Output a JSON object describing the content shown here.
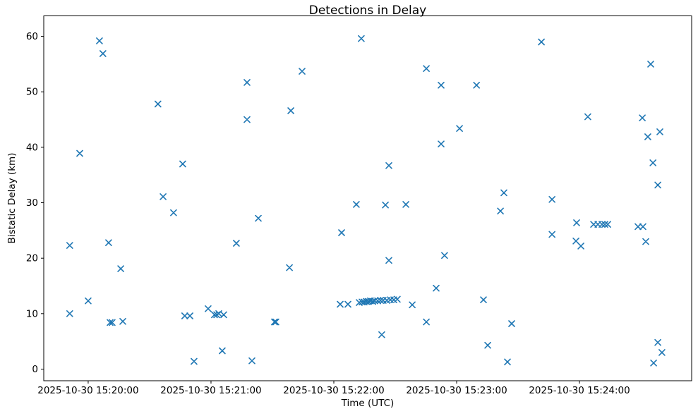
{
  "chart_data": {
    "type": "scatter",
    "title": "Detections in Delay",
    "xlabel": "Time (UTC)",
    "ylabel": "Bistatic Delay (km)",
    "marker": "x",
    "marker_color": "#1f77b4",
    "grid": false,
    "x_time_base": "2025-10-30 15:20:00",
    "x_unit_note": "point x values are seconds relative to 2025-10-30 15:20:00 UTC",
    "xlim_seconds": [
      -21.7,
      294.8
    ],
    "ylim": [
      -2.1,
      63.7
    ],
    "x_ticks": [
      {
        "seconds": 0,
        "label": "2025-10-30 15:20:00"
      },
      {
        "seconds": 60,
        "label": "2025-10-30 15:21:00"
      },
      {
        "seconds": 120,
        "label": "2025-10-30 15:22:00"
      },
      {
        "seconds": 180,
        "label": "2025-10-30 15:23:00"
      },
      {
        "seconds": 240,
        "label": "2025-10-30 15:24:00"
      }
    ],
    "y_ticks": [
      0,
      10,
      20,
      30,
      40,
      50,
      60
    ],
    "points": [
      [
        5.5,
        59.2
      ],
      [
        7.2,
        56.9
      ],
      [
        34.1,
        47.8
      ],
      [
        -4.1,
        38.9
      ],
      [
        46.2,
        37.0
      ],
      [
        36.6,
        31.1
      ],
      [
        41.7,
        28.2
      ],
      [
        -9.0,
        22.3
      ],
      [
        10.0,
        22.8
      ],
      [
        15.9,
        18.1
      ],
      [
        0.0,
        12.3
      ],
      [
        -9.0,
        10.0
      ],
      [
        10.7,
        8.4
      ],
      [
        11.7,
        8.4
      ],
      [
        16.9,
        8.6
      ],
      [
        47.2,
        9.6
      ],
      [
        49.7,
        9.6
      ],
      [
        58.6,
        10.9
      ],
      [
        51.7,
        1.4
      ],
      [
        61.7,
        9.8
      ],
      [
        62.8,
        9.8
      ],
      [
        63.8,
        10.0
      ],
      [
        66.2,
        9.8
      ],
      [
        133.4,
        59.6
      ],
      [
        104.5,
        53.7
      ],
      [
        77.6,
        51.7
      ],
      [
        99.0,
        46.6
      ],
      [
        77.6,
        45.0
      ],
      [
        131.0,
        29.7
      ],
      [
        83.1,
        27.2
      ],
      [
        123.8,
        24.6
      ],
      [
        72.4,
        22.7
      ],
      [
        98.3,
        18.3
      ],
      [
        91.0,
        8.5
      ],
      [
        91.7,
        8.5
      ],
      [
        65.5,
        3.3
      ],
      [
        80.0,
        1.5
      ],
      [
        123.1,
        11.7
      ],
      [
        126.9,
        11.7
      ],
      [
        132.4,
        12.0
      ],
      [
        133.8,
        12.1
      ],
      [
        134.8,
        12.1
      ],
      [
        135.9,
        12.2
      ],
      [
        136.9,
        12.2
      ],
      [
        137.9,
        12.3
      ],
      [
        139.0,
        12.2
      ],
      [
        140.0,
        12.3
      ],
      [
        141.4,
        12.3
      ],
      [
        142.8,
        12.4
      ],
      [
        144.1,
        12.4
      ],
      [
        145.9,
        12.4
      ],
      [
        147.6,
        12.5
      ],
      [
        149.3,
        12.5
      ],
      [
        151.0,
        12.6
      ],
      [
        165.2,
        54.2
      ],
      [
        172.4,
        51.2
      ],
      [
        189.7,
        51.2
      ],
      [
        181.4,
        43.4
      ],
      [
        172.4,
        40.6
      ],
      [
        146.9,
        36.7
      ],
      [
        203.1,
        31.8
      ],
      [
        145.2,
        29.6
      ],
      [
        155.2,
        29.7
      ],
      [
        201.4,
        28.5
      ],
      [
        146.9,
        19.6
      ],
      [
        174.1,
        20.5
      ],
      [
        170.0,
        14.6
      ],
      [
        158.3,
        11.6
      ],
      [
        193.1,
        12.5
      ],
      [
        165.2,
        8.5
      ],
      [
        206.9,
        8.2
      ],
      [
        143.4,
        6.2
      ],
      [
        195.2,
        4.3
      ],
      [
        204.8,
        1.3
      ],
      [
        221.4,
        59.0
      ],
      [
        274.8,
        55.0
      ],
      [
        244.1,
        45.5
      ],
      [
        270.7,
        45.3
      ],
      [
        279.3,
        42.8
      ],
      [
        273.4,
        41.9
      ],
      [
        275.9,
        37.2
      ],
      [
        278.3,
        33.2
      ],
      [
        226.6,
        30.6
      ],
      [
        238.6,
        26.4
      ],
      [
        226.6,
        24.3
      ],
      [
        238.3,
        23.1
      ],
      [
        240.7,
        22.2
      ],
      [
        246.9,
        26.1
      ],
      [
        249.0,
        26.1
      ],
      [
        251.0,
        26.1
      ],
      [
        252.4,
        26.1
      ],
      [
        253.8,
        26.1
      ],
      [
        268.6,
        25.7
      ],
      [
        271.0,
        25.7
      ],
      [
        272.4,
        23.0
      ],
      [
        278.3,
        4.8
      ],
      [
        280.3,
        3.0
      ],
      [
        276.2,
        1.1
      ]
    ]
  }
}
